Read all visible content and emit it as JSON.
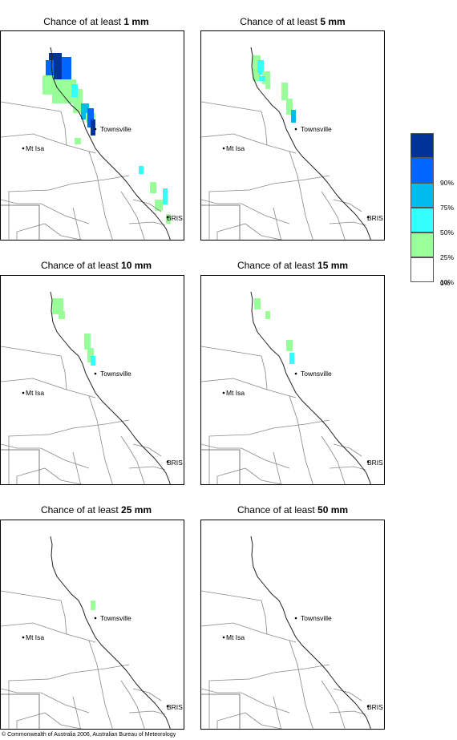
{
  "title_prefix": "Chance of at least",
  "panels": [
    {
      "threshold": "1 mm"
    },
    {
      "threshold": "5 mm"
    },
    {
      "threshold": "10 mm"
    },
    {
      "threshold": "15 mm"
    },
    {
      "threshold": "25 mm"
    },
    {
      "threshold": "50 mm"
    }
  ],
  "places": {
    "townsville": "Townsville",
    "mt_isa": "Mt Isa",
    "brisbane": "BRIS"
  },
  "legend": {
    "bins": [
      {
        "label": "",
        "color": "#003399"
      },
      {
        "label": "90%",
        "color": "#0066ff"
      },
      {
        "label": "75%",
        "color": "#00bbee"
      },
      {
        "label": "50%",
        "color": "#33ffff"
      },
      {
        "label": "25%",
        "color": "#99ff99"
      },
      {
        "label": "10%",
        "color": "#ffffff"
      }
    ],
    "bottom_label": "0%"
  },
  "copyright": "© Commonwealth of Australia 2006, Australian Bureau of Meteorology"
}
